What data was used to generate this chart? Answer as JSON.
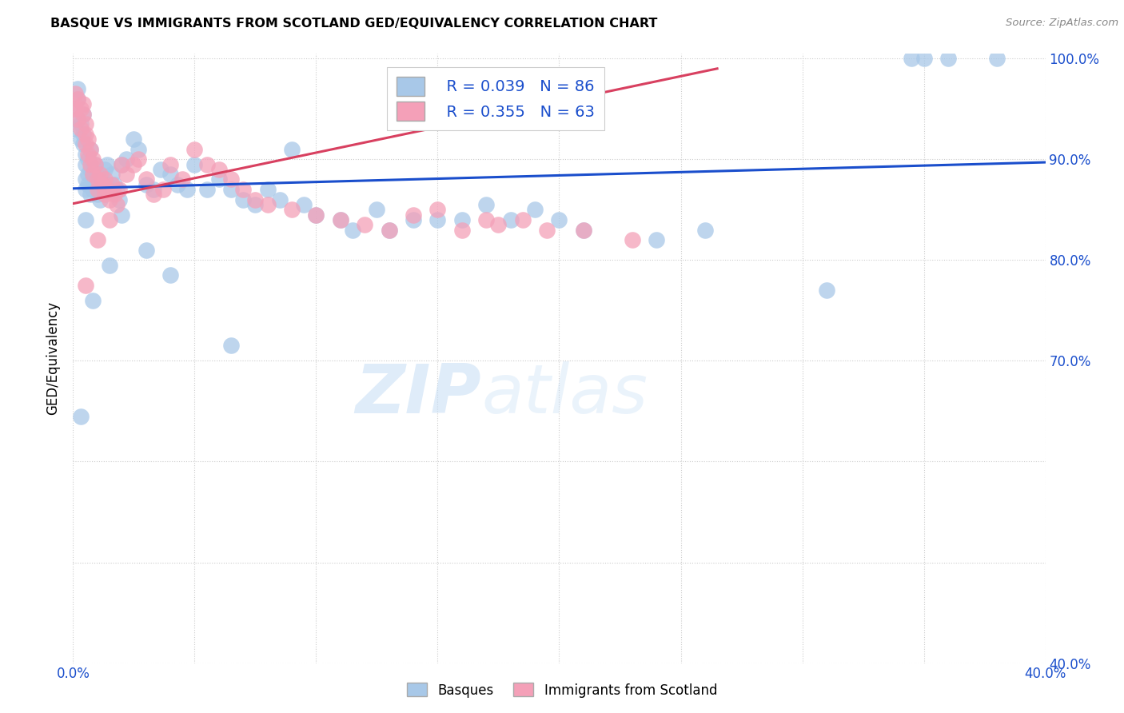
{
  "title": "BASQUE VS IMMIGRANTS FROM SCOTLAND GED/EQUIVALENCY CORRELATION CHART",
  "source": "Source: ZipAtlas.com",
  "ylabel": "GED/Equivalency",
  "legend_label1": "Basques",
  "legend_label2": "Immigrants from Scotland",
  "r1": 0.039,
  "n1": 86,
  "r2": 0.355,
  "n2": 63,
  "color1": "#a8c8e8",
  "color2": "#f4a0b8",
  "line_color1": "#1a4ecc",
  "line_color2": "#d84060",
  "xlim": [
    0.0,
    0.4
  ],
  "ylim": [
    0.4,
    1.005
  ],
  "xticks": [
    0.0,
    0.05,
    0.1,
    0.15,
    0.2,
    0.25,
    0.3,
    0.35,
    0.4
  ],
  "yticks": [
    0.4,
    0.5,
    0.6,
    0.7,
    0.8,
    0.9,
    1.0
  ],
  "watermark_zip": "ZIP",
  "watermark_atlas": "atlas",
  "background_color": "#ffffff",
  "grid_color": "#cccccc",
  "blue_line_x": [
    0.0,
    0.4
  ],
  "blue_line_y": [
    0.871,
    0.897
  ],
  "pink_line_x": [
    0.0,
    0.265
  ],
  "pink_line_y": [
    0.856,
    0.99
  ],
  "basques_x": [
    0.001,
    0.001,
    0.002,
    0.002,
    0.002,
    0.003,
    0.003,
    0.004,
    0.004,
    0.004,
    0.005,
    0.005,
    0.005,
    0.005,
    0.006,
    0.006,
    0.006,
    0.007,
    0.007,
    0.007,
    0.008,
    0.008,
    0.009,
    0.009,
    0.01,
    0.01,
    0.01,
    0.011,
    0.012,
    0.012,
    0.013,
    0.013,
    0.014,
    0.015,
    0.016,
    0.017,
    0.018,
    0.019,
    0.02,
    0.022,
    0.025,
    0.027,
    0.03,
    0.033,
    0.036,
    0.04,
    0.043,
    0.047,
    0.05,
    0.055,
    0.06,
    0.065,
    0.07,
    0.075,
    0.08,
    0.085,
    0.09,
    0.095,
    0.1,
    0.11,
    0.115,
    0.125,
    0.13,
    0.14,
    0.15,
    0.16,
    0.17,
    0.18,
    0.19,
    0.2,
    0.21,
    0.24,
    0.26,
    0.31,
    0.345,
    0.35,
    0.36,
    0.38,
    0.005,
    0.003,
    0.008,
    0.015,
    0.02,
    0.03,
    0.04,
    0.065
  ],
  "basques_y": [
    0.93,
    0.95,
    0.94,
    0.96,
    0.97,
    0.92,
    0.935,
    0.915,
    0.925,
    0.945,
    0.88,
    0.895,
    0.905,
    0.87,
    0.885,
    0.9,
    0.875,
    0.89,
    0.91,
    0.865,
    0.87,
    0.88,
    0.895,
    0.875,
    0.87,
    0.885,
    0.865,
    0.86,
    0.88,
    0.87,
    0.89,
    0.875,
    0.895,
    0.87,
    0.885,
    0.875,
    0.87,
    0.86,
    0.895,
    0.9,
    0.92,
    0.91,
    0.875,
    0.87,
    0.89,
    0.885,
    0.875,
    0.87,
    0.895,
    0.87,
    0.88,
    0.87,
    0.86,
    0.855,
    0.87,
    0.86,
    0.91,
    0.855,
    0.845,
    0.84,
    0.83,
    0.85,
    0.83,
    0.84,
    0.84,
    0.84,
    0.855,
    0.84,
    0.85,
    0.84,
    0.83,
    0.82,
    0.83,
    0.77,
    1.0,
    1.0,
    1.0,
    1.0,
    0.84,
    0.645,
    0.76,
    0.795,
    0.845,
    0.81,
    0.785,
    0.715
  ],
  "scotland_x": [
    0.001,
    0.001,
    0.002,
    0.002,
    0.003,
    0.003,
    0.004,
    0.004,
    0.005,
    0.005,
    0.005,
    0.006,
    0.006,
    0.007,
    0.007,
    0.008,
    0.008,
    0.009,
    0.01,
    0.01,
    0.011,
    0.012,
    0.013,
    0.013,
    0.014,
    0.015,
    0.016,
    0.017,
    0.018,
    0.019,
    0.02,
    0.022,
    0.025,
    0.027,
    0.03,
    0.033,
    0.037,
    0.04,
    0.045,
    0.05,
    0.055,
    0.06,
    0.065,
    0.07,
    0.075,
    0.08,
    0.09,
    0.1,
    0.11,
    0.12,
    0.13,
    0.14,
    0.15,
    0.16,
    0.17,
    0.175,
    0.185,
    0.195,
    0.21,
    0.23,
    0.005,
    0.01,
    0.015
  ],
  "scotland_y": [
    0.95,
    0.965,
    0.94,
    0.96,
    0.93,
    0.95,
    0.945,
    0.955,
    0.935,
    0.925,
    0.915,
    0.905,
    0.92,
    0.91,
    0.895,
    0.9,
    0.885,
    0.895,
    0.88,
    0.87,
    0.885,
    0.875,
    0.865,
    0.88,
    0.87,
    0.86,
    0.875,
    0.865,
    0.855,
    0.87,
    0.895,
    0.885,
    0.895,
    0.9,
    0.88,
    0.865,
    0.87,
    0.895,
    0.88,
    0.91,
    0.895,
    0.89,
    0.88,
    0.87,
    0.86,
    0.855,
    0.85,
    0.845,
    0.84,
    0.835,
    0.83,
    0.845,
    0.85,
    0.83,
    0.84,
    0.835,
    0.84,
    0.83,
    0.83,
    0.82,
    0.775,
    0.82,
    0.84
  ]
}
